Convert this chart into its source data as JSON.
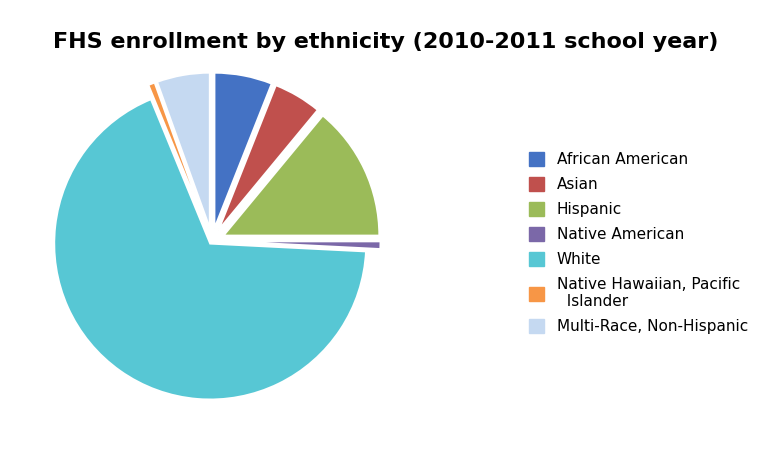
{
  "title": "FHS enrollment by ethnicity (2010-2011 school year)",
  "labels": [
    "African American",
    "Asian",
    "Hispanic",
    "Native American",
    "White",
    "Native Hawaiian, Pacific\nIslander",
    "Multi-Race, Non-Hispanic"
  ],
  "legend_labels": [
    "African American",
    "Asian",
    "Hispanic",
    "Native American",
    "White",
    "Native Hawaiian, Pacific\n  Islander",
    "Multi-Race, Non-Hispanic"
  ],
  "values": [
    6.0,
    5.0,
    14.0,
    0.8,
    68.0,
    0.7,
    5.5
  ],
  "colors": [
    "#4472C4",
    "#C0504D",
    "#9BBB59",
    "#7B68A8",
    "#57C7D4",
    "#F79646",
    "#C5D9F1"
  ],
  "explode": [
    0.08,
    0.08,
    0.08,
    0.08,
    0.02,
    0.08,
    0.08
  ],
  "startangle": 90,
  "background_color": "#ffffff",
  "title_fontsize": 16,
  "legend_fontsize": 11
}
